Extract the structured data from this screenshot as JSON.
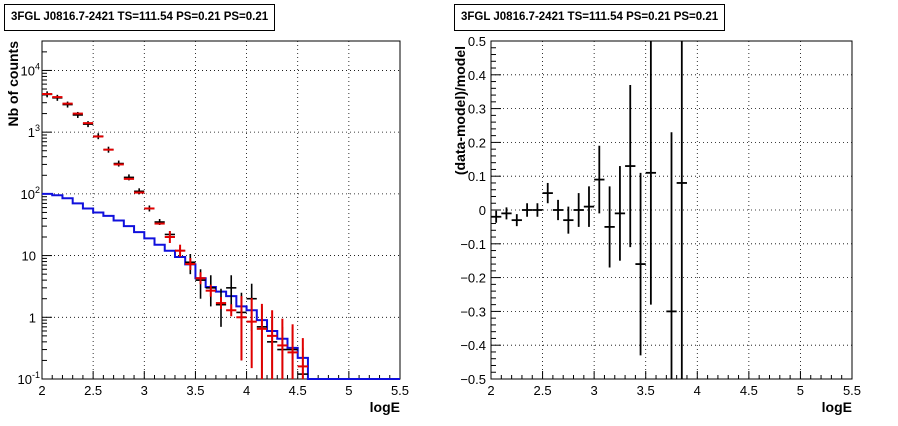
{
  "colors": {
    "data": "#000000",
    "model": "#e00000",
    "background": "#1010dd",
    "grid": "#000000"
  },
  "chart_data": [
    {
      "type": "line",
      "title": "3FGL J0816.7-2421 TS=111.54 PS=0.21 PS=0.21",
      "xlabel": "logE",
      "ylabel": "Nb of counts",
      "xlim": [
        2,
        5.5
      ],
      "ylim": [
        0.1,
        30000
      ],
      "yscale": "log",
      "grid": true,
      "x_ticks": [
        "2",
        "2.5",
        "3",
        "3.5",
        "4",
        "4.5",
        "5",
        "5.5"
      ],
      "y_ticks": [
        "10",
        "1",
        "10",
        "10",
        "1",
        "10"
      ],
      "y_tick_exponents": [
        "-1",
        "",
        "",
        "2",
        "3",
        "4"
      ],
      "series": [
        {
          "kind": "errorbar",
          "color": "data",
          "x": [
            2.05,
            2.15,
            2.25,
            2.35,
            2.45,
            2.55,
            2.65,
            2.75,
            2.85,
            2.95,
            3.05,
            3.15,
            3.25,
            3.35,
            3.45,
            3.55,
            3.65,
            3.75,
            3.85,
            3.95,
            4.05,
            4.15,
            4.25,
            4.35,
            4.45,
            4.55
          ],
          "y": [
            4100,
            3600,
            2800,
            1900,
            1350,
            860,
            520,
            310,
            185,
            110,
            58,
            35,
            22,
            12,
            7.8,
            4,
            3,
            1.6,
            3,
            1.2,
            2,
            0.7,
            0.4,
            0.3,
            0.3,
            0.12
          ],
          "yerr_low": [
            0,
            0,
            0,
            0,
            0,
            0,
            0,
            0,
            0,
            0,
            0,
            0,
            0,
            0,
            2.8,
            2.0,
            1.5,
            0.9,
            1.8,
            1.0,
            1.4,
            0.6,
            0.35,
            0.25,
            0.25,
            0.1
          ],
          "yerr_high": [
            0,
            0,
            0,
            0,
            0,
            0,
            0,
            0,
            0,
            0,
            0,
            0,
            0,
            0,
            2.8,
            2.0,
            1.8,
            1.3,
            1.8,
            1.3,
            1.5,
            0.8,
            0.5,
            0.4,
            0.4,
            0.2
          ]
        },
        {
          "kind": "step",
          "color": "model",
          "x": [
            2.05,
            2.15,
            2.25,
            2.35,
            2.45,
            2.55,
            2.65,
            2.75,
            2.85,
            2.95,
            3.05,
            3.15,
            3.25,
            3.35,
            3.45,
            3.55,
            3.65,
            3.75,
            3.85,
            3.95,
            4.05,
            4.15,
            4.25,
            4.35,
            4.45,
            4.55
          ],
          "y": [
            4150,
            3700,
            2900,
            2000,
            1400,
            850,
            520,
            300,
            175,
            105,
            58,
            33,
            20,
            12,
            7.3,
            4.3,
            2.7,
            1.7,
            1.3,
            1.0,
            0.85,
            0.65,
            0.5,
            0.35,
            0.27,
            0.16
          ],
          "yerr_low": [
            0,
            0,
            0,
            0,
            0,
            0,
            0,
            0,
            0,
            0,
            0,
            0,
            0,
            0,
            0,
            0,
            0,
            0,
            0,
            0.8,
            0.7,
            0.55,
            0.42,
            0.3,
            0.22,
            0.13
          ],
          "yerr_high": [
            0,
            0,
            0,
            0,
            0,
            0,
            0,
            0,
            0,
            0,
            0,
            0,
            0,
            0,
            0,
            0,
            0,
            0,
            0,
            1.2,
            1.2,
            1.0,
            0.8,
            0.6,
            0.5,
            0.3
          ]
        },
        {
          "kind": "step",
          "color": "background",
          "x": [
            2.05,
            2.15,
            2.25,
            2.35,
            2.45,
            2.55,
            2.65,
            2.75,
            2.85,
            2.95,
            3.05,
            3.15,
            3.25,
            3.35,
            3.45,
            3.55,
            3.65,
            3.75,
            3.85,
            3.95,
            4.05,
            4.15,
            4.25,
            4.35,
            4.45,
            4.55,
            4.65,
            4.75,
            4.85,
            4.95,
            5.05,
            5.15,
            5.25,
            5.35,
            5.45
          ],
          "y": [
            100,
            95,
            85,
            70,
            58,
            50,
            44,
            37,
            30,
            24,
            19,
            15,
            12,
            9.5,
            7.2,
            4.3,
            3.1,
            2.6,
            2.2,
            1.5,
            1.3,
            0.9,
            0.6,
            0.45,
            0.32,
            0.22,
            0.1,
            0.1,
            0.1,
            0.1,
            0.1,
            0.1,
            0.1,
            0.1,
            0.1
          ]
        }
      ]
    },
    {
      "type": "scatter",
      "title": "3FGL J0816.7-2421 TS=111.54 PS=0.21 PS=0.21",
      "xlabel": "logE",
      "ylabel": "(data-model)/model",
      "xlim": [
        2,
        5.5
      ],
      "ylim": [
        -0.5,
        0.5
      ],
      "grid": true,
      "x_ticks": [
        "2",
        "2.5",
        "3",
        "3.5",
        "4",
        "4.5",
        "5",
        "5.5"
      ],
      "y_ticks": [
        "−0.5",
        "−0.4",
        "−0.3",
        "−0.2",
        "−0.1",
        "0",
        "0.1",
        "0.2",
        "0.3",
        "0.4",
        "0.5"
      ],
      "series": [
        {
          "kind": "errorbar",
          "color": "data",
          "x": [
            2.05,
            2.15,
            2.25,
            2.35,
            2.45,
            2.55,
            2.65,
            2.75,
            2.85,
            2.95,
            3.05,
            3.15,
            3.25,
            3.35,
            3.45,
            3.55,
            3.75,
            3.85
          ],
          "y": [
            -0.02,
            -0.01,
            -0.03,
            0.0,
            0.0,
            0.05,
            0.0,
            -0.03,
            0.0,
            0.01,
            0.09,
            -0.05,
            -0.01,
            0.13,
            -0.16,
            0.11,
            -0.3,
            0.08
          ],
          "yerr": [
            0.015,
            0.015,
            0.015,
            0.02,
            0.02,
            0.03,
            0.03,
            0.04,
            0.05,
            0.06,
            0.1,
            0.12,
            0.14,
            0.24,
            0.27,
            0.39,
            0.53,
            0.6
          ]
        }
      ]
    }
  ]
}
